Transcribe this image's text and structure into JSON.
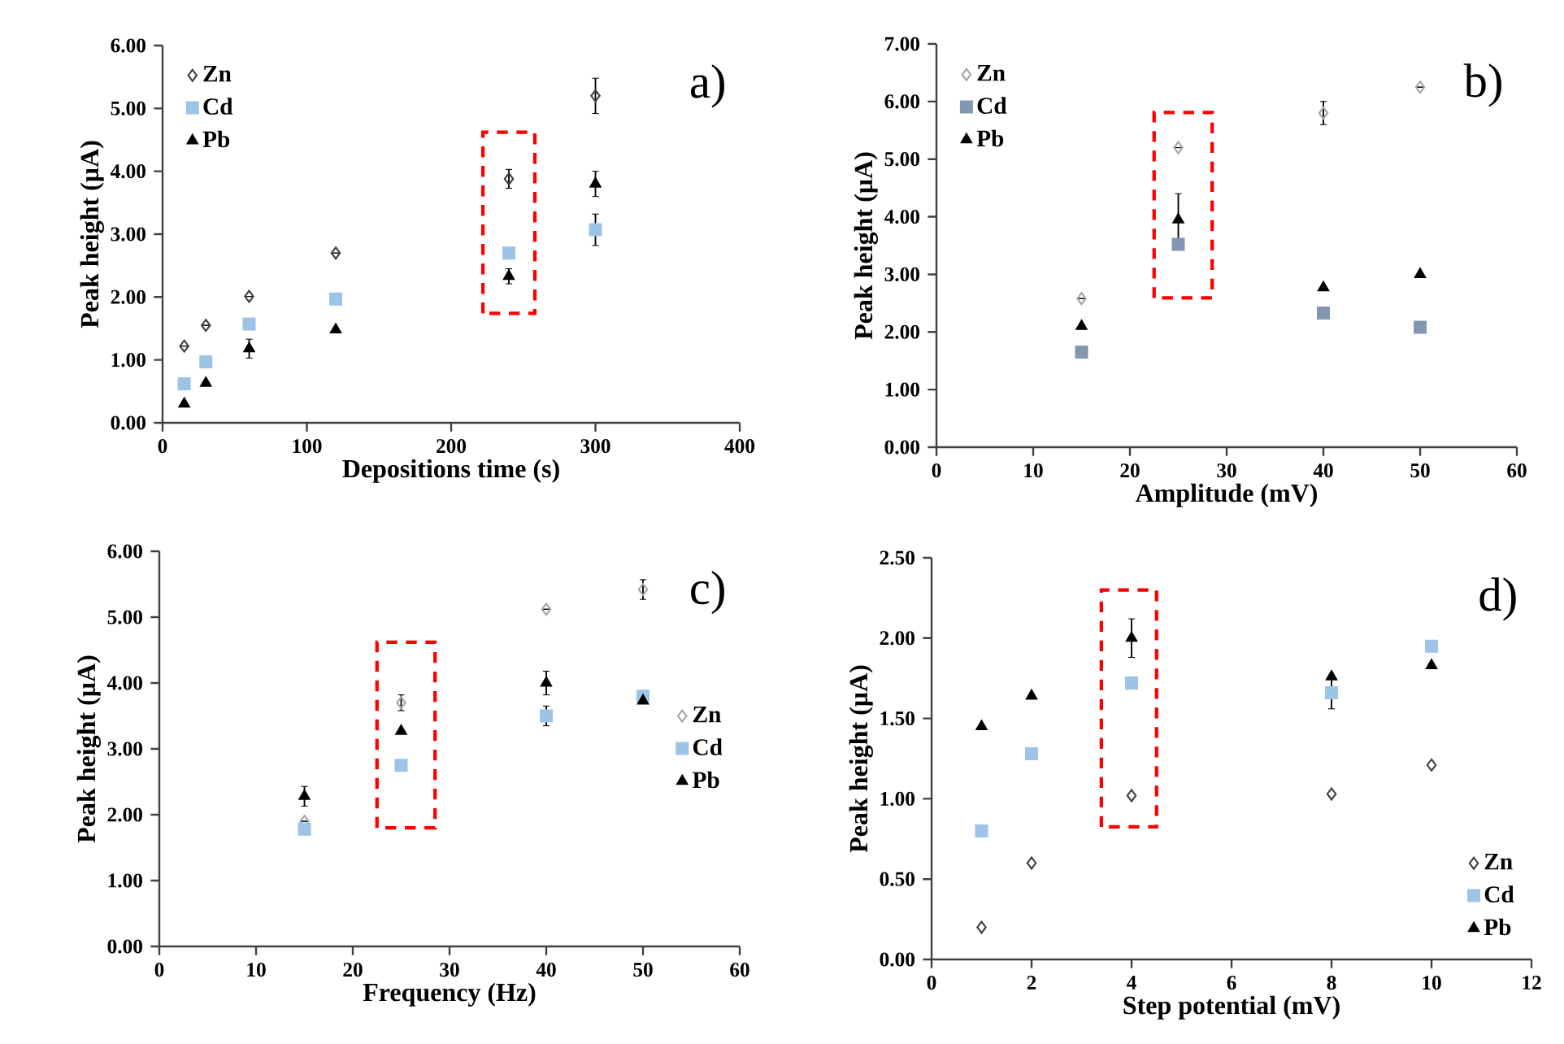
{
  "chart_data": [
    {
      "type": "scatter",
      "xlabel": "Depositions time (s)",
      "ylabel": "Peak height (µA)",
      "annotations": [
        "a)"
      ],
      "legend": "top left",
      "xlim": [
        0,
        400
      ],
      "xticks": [
        0,
        100,
        200,
        300,
        400
      ],
      "ylim": [
        0,
        6
      ],
      "yticks": [
        {
          "value": 0,
          "label": "0.00"
        },
        {
          "value": 1,
          "label": "1.00"
        },
        {
          "value": 2,
          "label": "2.00"
        },
        {
          "value": 3,
          "label": "3.00"
        },
        {
          "value": 4,
          "label": "4.00"
        },
        {
          "value": 5,
          "label": "5.00"
        },
        {
          "value": 6,
          "label": "6.00"
        }
      ],
      "x": [
        15,
        30,
        60,
        120,
        240,
        300
      ],
      "series": [
        {
          "name": "Zn",
          "color": "#404040",
          "marker": "diamond",
          "values": [
            1.22,
            1.55,
            2.01,
            2.7,
            3.88,
            5.2
          ],
          "errors": [
            null,
            null,
            null,
            null,
            0.15,
            0.28
          ]
        },
        {
          "name": "Cd",
          "color": "#9dc3e6",
          "marker": "square",
          "values": [
            0.62,
            0.97,
            1.57,
            1.97,
            2.7,
            3.07
          ],
          "errors": [
            null,
            null,
            null,
            null,
            null,
            0.25
          ]
        },
        {
          "name": "Pb",
          "color": "#000000",
          "marker": "triangle",
          "values": [
            0.3,
            0.63,
            1.18,
            1.48,
            2.33,
            3.8
          ],
          "errors": [
            null,
            null,
            0.15,
            null,
            0.12,
            0.2
          ]
        }
      ]
    },
    {
      "type": "scatter",
      "xlabel": "Amplitude (mV)",
      "ylabel": "Peak height (µA)",
      "annotations": [
        "b)"
      ],
      "legend": "top left",
      "xlim": [
        0,
        60
      ],
      "xticks": [
        0,
        10,
        20,
        30,
        40,
        50,
        60
      ],
      "ylim": [
        0,
        7
      ],
      "yticks": [
        {
          "value": 0,
          "label": "0.00"
        },
        {
          "value": 1,
          "label": "1.00"
        },
        {
          "value": 2,
          "label": "2.00"
        },
        {
          "value": 3,
          "label": "3.00"
        },
        {
          "value": 4,
          "label": "4.00"
        },
        {
          "value": 5,
          "label": "5.00"
        },
        {
          "value": 6,
          "label": "6.00"
        },
        {
          "value": 7,
          "label": "7.00"
        }
      ],
      "x": [
        15,
        25,
        40,
        50
      ],
      "series": [
        {
          "name": "Zn",
          "color": "#a6a6a6",
          "marker": "diamond",
          "values": [
            2.58,
            5.2,
            5.8,
            6.25
          ],
          "errors": [
            null,
            null,
            0.2,
            null
          ]
        },
        {
          "name": "Cd",
          "color": "#8497b0",
          "marker": "square",
          "values": [
            1.65,
            3.52,
            2.33,
            2.08
          ]
        },
        {
          "name": "Pb",
          "color": "#000000",
          "marker": "triangle",
          "values": [
            2.1,
            3.95,
            2.77,
            3.0
          ],
          "errors": [
            null,
            0.45,
            null,
            null
          ]
        }
      ]
    },
    {
      "type": "scatter",
      "xlabel": "Frequency (Hz)",
      "ylabel": "Peak height (µA)",
      "annotations": [
        "c)"
      ],
      "legend": "right",
      "xlim": [
        0,
        60
      ],
      "xticks": [
        0,
        10,
        20,
        30,
        40,
        50,
        60
      ],
      "ylim": [
        0,
        6
      ],
      "yticks": [
        {
          "value": 0,
          "label": "0.00"
        },
        {
          "value": 1,
          "label": "1.00"
        },
        {
          "value": 2,
          "label": "2.00"
        },
        {
          "value": 3,
          "label": "3.00"
        },
        {
          "value": 4,
          "label": "4.00"
        },
        {
          "value": 5,
          "label": "5.00"
        },
        {
          "value": 6,
          "label": "6.00"
        }
      ],
      "x": [
        15,
        25,
        40,
        50
      ],
      "series": [
        {
          "name": "Zn",
          "color": "#a6a6a6",
          "marker": "diamond",
          "values": [
            1.9,
            3.7,
            5.12,
            5.42
          ],
          "errors": [
            null,
            0.12,
            null,
            0.15
          ]
        },
        {
          "name": "Cd",
          "color": "#9dc3e6",
          "marker": "square",
          "values": [
            1.78,
            2.75,
            3.5,
            3.8
          ],
          "errors": [
            null,
            null,
            0.15,
            null
          ]
        },
        {
          "name": "Pb",
          "color": "#000000",
          "marker": "triangle",
          "values": [
            2.28,
            3.27,
            4.0,
            3.73
          ],
          "errors": [
            0.15,
            null,
            0.18,
            null
          ]
        }
      ]
    },
    {
      "type": "scatter",
      "xlabel": "Step potential (mV)",
      "ylabel": "Peak height (µA)",
      "annotations": [
        "d)"
      ],
      "legend": "bottom right",
      "xlim": [
        0,
        12
      ],
      "xticks": [
        0,
        2,
        4,
        6,
        8,
        10,
        12
      ],
      "ylim": [
        0,
        2.5
      ],
      "yticks": [
        {
          "value": 0,
          "label": "0.00"
        },
        {
          "value": 0.5,
          "label": "0.50"
        },
        {
          "value": 1,
          "label": "1.00"
        },
        {
          "value": 1.5,
          "label": "1.50"
        },
        {
          "value": 2,
          "label": "2.00"
        },
        {
          "value": 2.5,
          "label": "2.50"
        }
      ],
      "x": [
        1,
        2,
        4,
        8,
        10
      ],
      "series": [
        {
          "name": "Zn",
          "color": "#404040",
          "marker": "diamond",
          "values": [
            0.2,
            0.6,
            1.02,
            1.03,
            1.21
          ]
        },
        {
          "name": "Cd",
          "color": "#9dc3e6",
          "marker": "square",
          "values": [
            0.8,
            1.28,
            1.72,
            1.66,
            1.95
          ],
          "errors": [
            null,
            null,
            null,
            0.1,
            null
          ]
        },
        {
          "name": "Pb",
          "color": "#000000",
          "marker": "triangle",
          "values": [
            1.45,
            1.64,
            2.0,
            1.76,
            1.83
          ],
          "errors": [
            null,
            null,
            0.12,
            null,
            null
          ]
        }
      ]
    }
  ]
}
